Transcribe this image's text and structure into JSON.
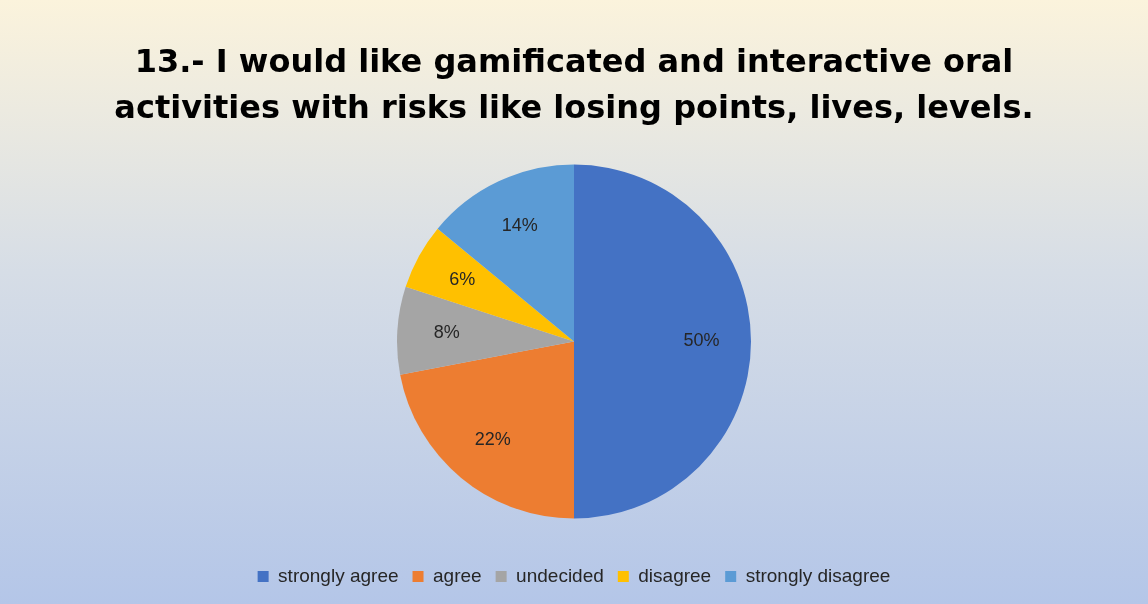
{
  "chart_data": {
    "type": "pie",
    "title": "13.- I would like gamificated and interactive oral activities with risks like losing points, lives, levels.",
    "categories": [
      "strongly agree",
      "agree",
      "undecided",
      "disagree",
      "strongly disagree"
    ],
    "values": [
      50,
      22,
      8,
      6,
      14
    ],
    "value_labels": [
      "50%",
      "22%",
      "8%",
      "6%",
      "14%"
    ],
    "colors": [
      "#4472c4",
      "#ed7d31",
      "#a5a5a5",
      "#ffc000",
      "#5b9bd5"
    ],
    "legend": "bottom"
  }
}
